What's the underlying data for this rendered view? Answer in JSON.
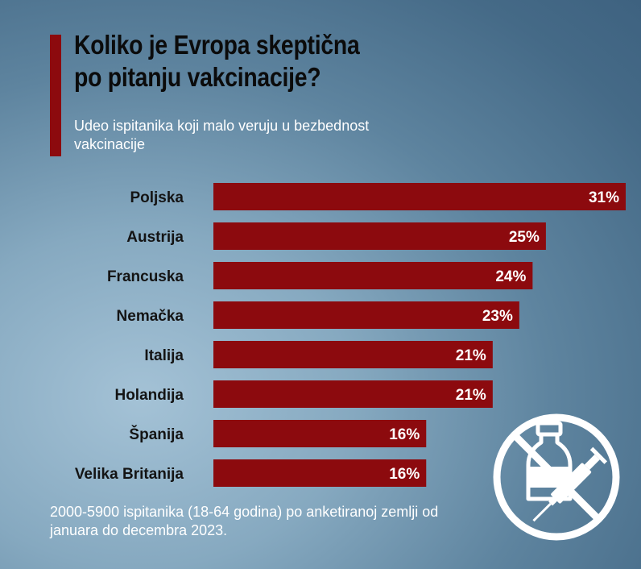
{
  "header": {
    "title": "Koliko je Evropa skeptična po pitanju vakcinacije?",
    "subtitle": "Udeo ispitanika koji malo veruju u bezbednost vakcinacije"
  },
  "footer": {
    "source": "2000-5900 ispitanika (18-64 godina) po anketiranoj zemlji od januara do decembra 2023."
  },
  "icon": "no-vaccine-icon",
  "colors": {
    "bar": "#8c0a0e",
    "accent": "#8c0a0e",
    "background": "#5e849f"
  },
  "chart_data": {
    "type": "bar",
    "orientation": "horizontal",
    "title": "Koliko je Evropa skeptična po pitanju vakcinacije?",
    "subtitle": "Udeo ispitanika koji malo veruju u bezbednost vakcinacije",
    "categories": [
      "Poljska",
      "Austrija",
      "Francuska",
      "Nemačka",
      "Italija",
      "Holandija",
      "Španija",
      "Velika Britanija"
    ],
    "values": [
      31,
      25,
      24,
      23,
      21,
      21,
      16,
      16
    ],
    "value_labels": [
      "31%",
      "25%",
      "24%",
      "23%",
      "21%",
      "21%",
      "16%",
      "16%"
    ],
    "unit": "%",
    "grid": false,
    "legend": "none"
  }
}
